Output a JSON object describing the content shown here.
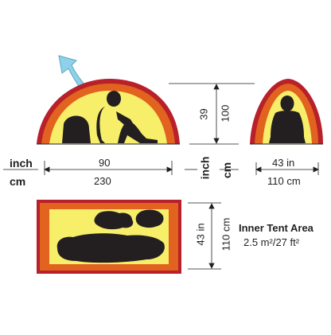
{
  "units": {
    "inch": "inch",
    "cm": "cm"
  },
  "side_view": {
    "length_in": "90",
    "length_cm": "230",
    "height_in": "39",
    "height_cm": "100"
  },
  "end_view": {
    "width_in": "43 in",
    "width_cm": "110 cm"
  },
  "floor_plan": {
    "width_in": "43 in",
    "width_cm": "110 cm"
  },
  "inner_tent": {
    "title": "Inner Tent Area",
    "area": "2.5 m²/27 ft²"
  },
  "colors": {
    "fly": "#e2621f",
    "fly_edge": "#b8202a",
    "inner": "#f7ef6a",
    "ink": "#231f20",
    "vent_arrow": "#8fd1e8"
  },
  "icons": [
    "vent-arrow-icon",
    "person-sitting-icon",
    "backpack-icon",
    "person-sitting-front-icon",
    "sleeping-bag-icon",
    "gear-pile-icon"
  ]
}
